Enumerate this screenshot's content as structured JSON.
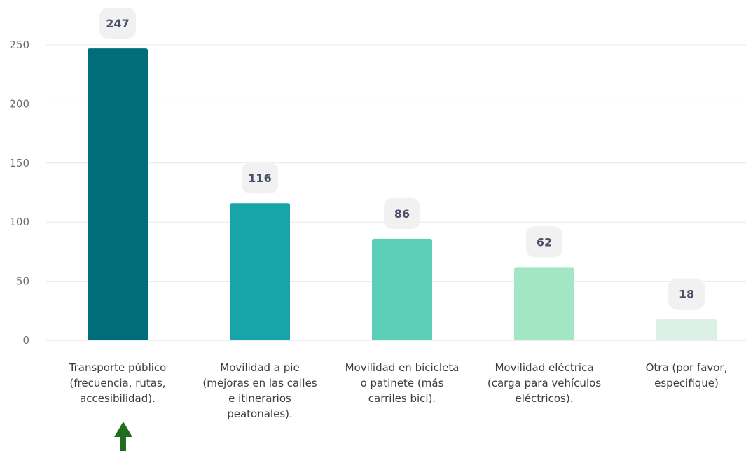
{
  "chart_data": {
    "type": "bar",
    "categories": [
      [
        "Transporte público",
        "(frecuencia, rutas,",
        "accesibilidad)."
      ],
      [
        "Movilidad a pie",
        "(mejoras en las calles",
        "e itinerarios",
        "peatonales)."
      ],
      [
        "Movilidad en bicicleta",
        "o patinete (más",
        "carriles bici)."
      ],
      [
        "Movilidad eléctrica",
        "(carga para vehículos",
        "eléctricos)."
      ],
      [
        "Otra (por favor,",
        "especifique)"
      ]
    ],
    "values": [
      247,
      116,
      86,
      62,
      18
    ],
    "bar_colors": [
      "#006d7a",
      "#17a5aa",
      "#5ccfb8",
      "#a3e6c4",
      "#dcf0e8"
    ],
    "title": "",
    "xlabel": "",
    "ylabel": "",
    "ylim": [
      0,
      250
    ],
    "yticks": [
      "0",
      "50",
      "100",
      "150",
      "200",
      "250"
    ],
    "grid": true,
    "annotation": {
      "type": "arrow",
      "target_category_index": 0,
      "color": "#1f6e1f"
    }
  }
}
